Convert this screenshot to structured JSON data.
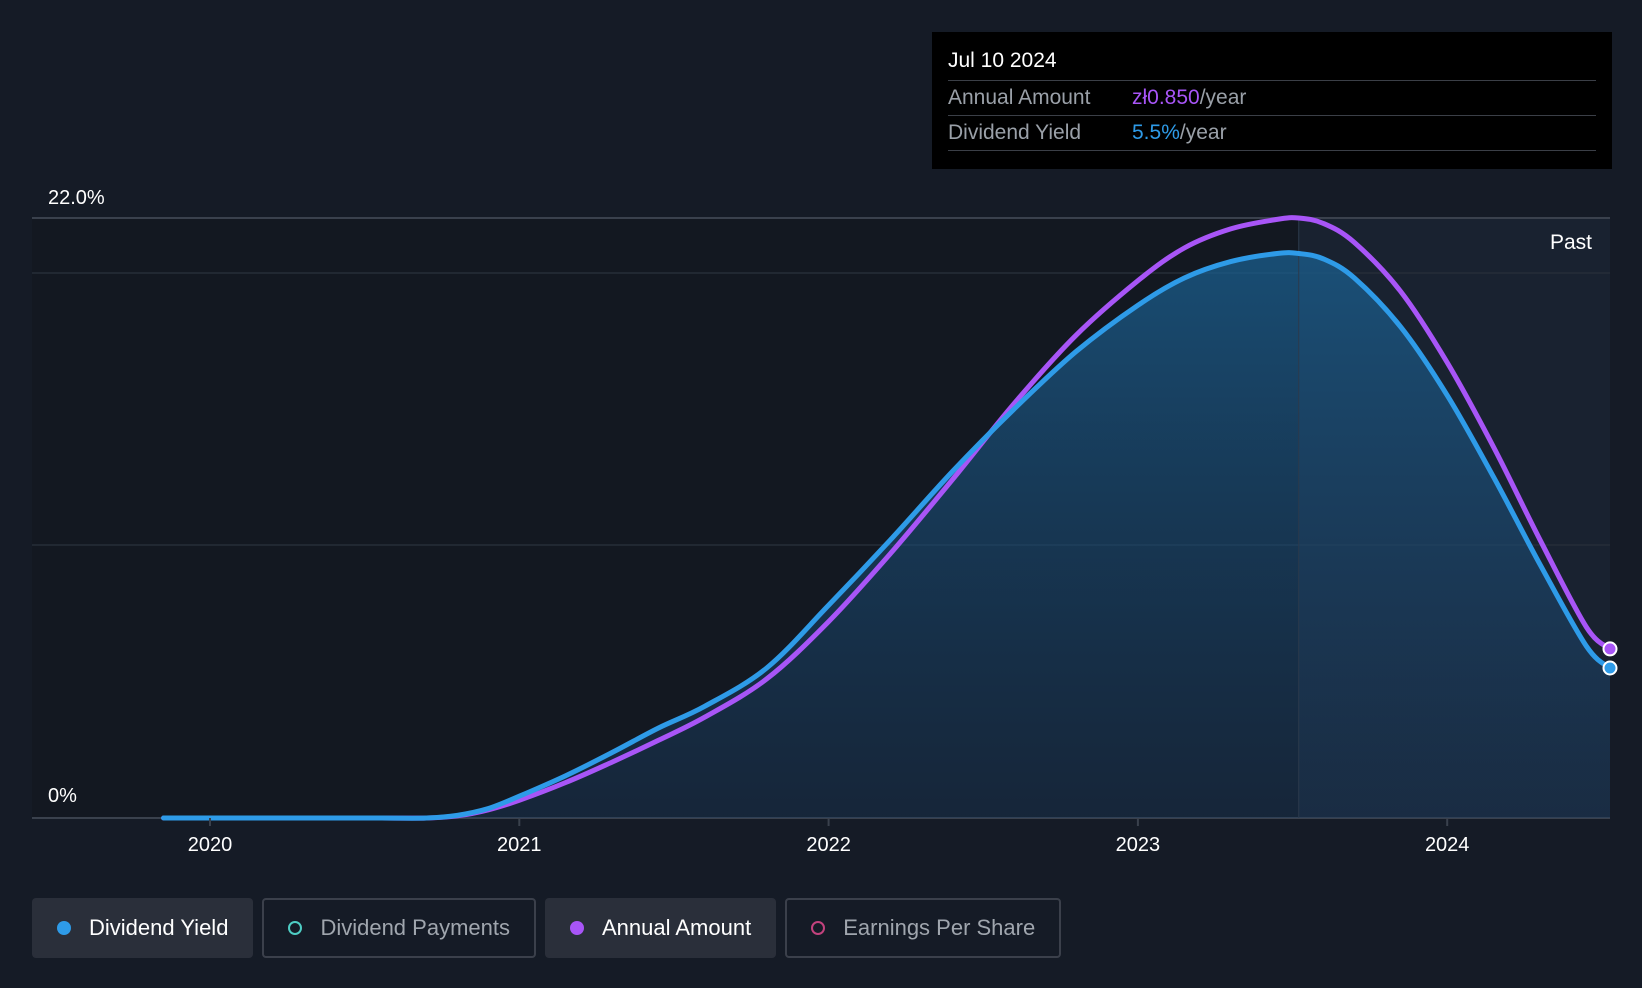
{
  "tooltip": {
    "date": "Jul 10 2024",
    "rows": [
      {
        "label": "Annual Amount",
        "value": "zł0.850",
        "unit": "/year",
        "color": "#a855f7"
      },
      {
        "label": "Dividend Yield",
        "value": "5.5%",
        "unit": "/year",
        "color": "#2e9be8"
      }
    ]
  },
  "past_label": "Past",
  "legend": [
    {
      "label": "Dividend Yield",
      "color": "#2e9be8",
      "filled": true,
      "active": true
    },
    {
      "label": "Dividend Payments",
      "color": "#4ecdc4",
      "filled": false,
      "active": false
    },
    {
      "label": "Annual Amount",
      "color": "#a855f7",
      "filled": true,
      "active": true
    },
    {
      "label": "Earnings Per Share",
      "color": "#c2427d",
      "filled": false,
      "active": false
    }
  ],
  "chart_data": {
    "type": "area",
    "y_tick_labels": [
      "22.0%",
      "0%"
    ],
    "ylim": [
      0,
      22.0
    ],
    "x_tick_labels": [
      "2020",
      "2021",
      "2022",
      "2023",
      "2024"
    ],
    "xlim": [
      2019.65,
      2024.53
    ],
    "past_start": 2023.52,
    "series": [
      {
        "name": "Dividend Yield",
        "color": "#2e9be8",
        "x": [
          2019.85,
          2020.0,
          2020.3,
          2020.55,
          2020.7,
          2020.8,
          2020.9,
          2021.0,
          2021.15,
          2021.3,
          2021.45,
          2021.6,
          2021.8,
          2022.0,
          2022.2,
          2022.4,
          2022.6,
          2022.8,
          2023.0,
          2023.15,
          2023.3,
          2023.45,
          2023.52,
          2023.6,
          2023.7,
          2023.85,
          2024.0,
          2024.15,
          2024.3,
          2024.45,
          2024.53
        ],
        "values": [
          0,
          0,
          0,
          0,
          0,
          0.1,
          0.35,
          0.8,
          1.55,
          2.4,
          3.3,
          4.1,
          5.5,
          7.8,
          10.2,
          12.7,
          15.0,
          17.1,
          18.8,
          19.8,
          20.4,
          20.7,
          20.7,
          20.5,
          19.8,
          18.0,
          15.5,
          12.5,
          9.3,
          6.3,
          5.5
        ]
      },
      {
        "name": "Annual Amount",
        "color": "#a855f7",
        "x": [
          2019.85,
          2020.0,
          2020.3,
          2020.55,
          2020.7,
          2020.8,
          2020.9,
          2021.0,
          2021.15,
          2021.3,
          2021.45,
          2021.6,
          2021.8,
          2022.0,
          2022.2,
          2022.4,
          2022.6,
          2022.8,
          2023.0,
          2023.15,
          2023.3,
          2023.45,
          2023.52,
          2023.6,
          2023.7,
          2023.85,
          2024.0,
          2024.15,
          2024.3,
          2024.45,
          2024.53
        ],
        "values": [
          0,
          0,
          0,
          0,
          0,
          0.08,
          0.3,
          0.65,
          1.3,
          2.05,
          2.85,
          3.7,
          5.1,
          7.2,
          9.7,
          12.4,
          15.2,
          17.7,
          19.7,
          20.9,
          21.6,
          21.95,
          22.0,
          21.8,
          21.1,
          19.3,
          16.7,
          13.6,
          10.2,
          7.0,
          6.2
        ]
      }
    ]
  }
}
